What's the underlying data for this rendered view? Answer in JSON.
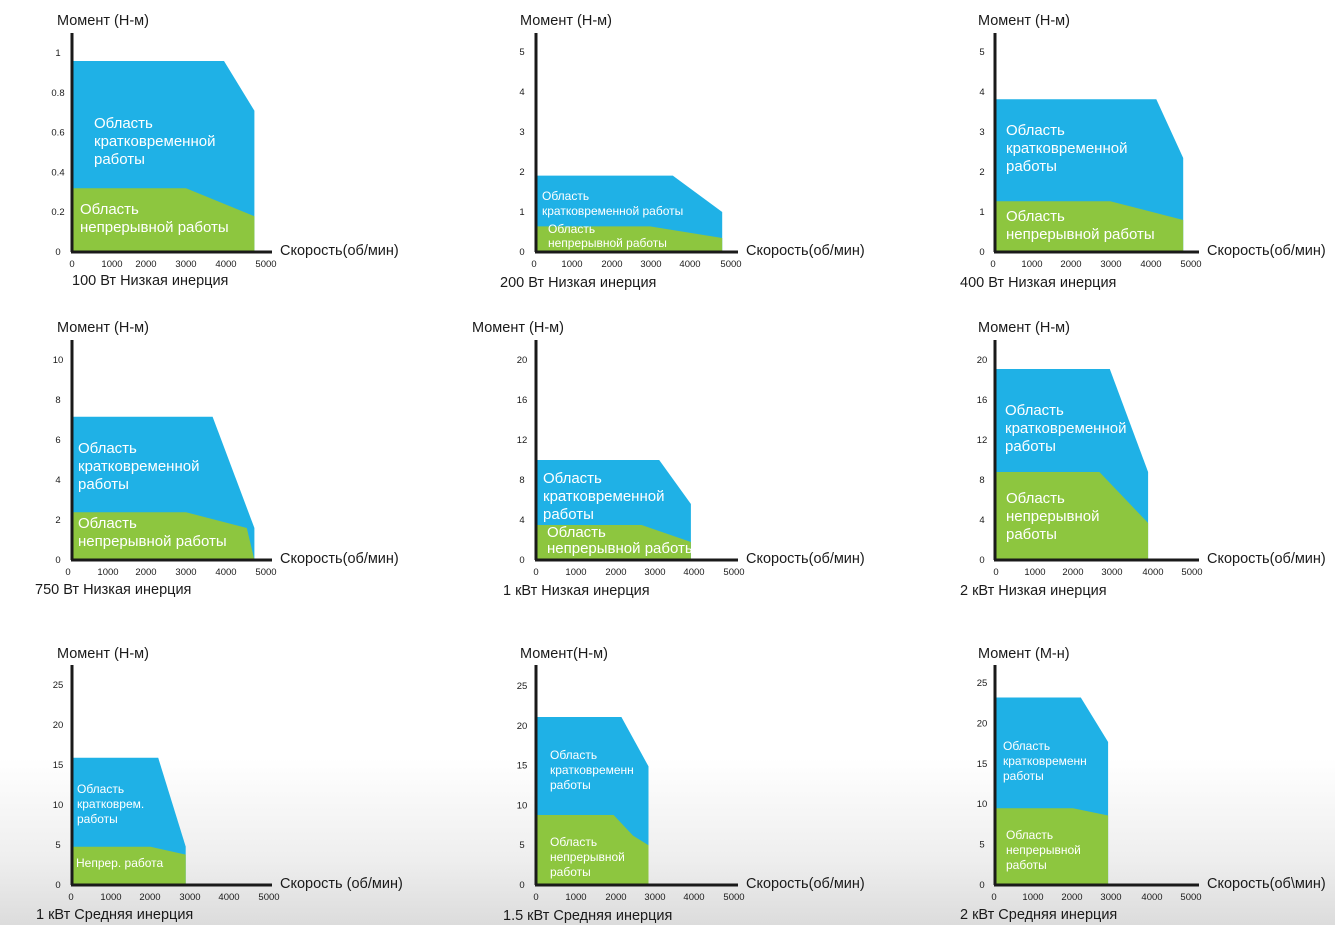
{
  "chart_data": [
    {
      "type": "area",
      "caption": "100 Вт Низкая инерция",
      "ylabel": "Момент (Н-м)",
      "xlabel": "Скорость(об/мин)",
      "xticks": [
        0,
        1000,
        2000,
        3000,
        4000,
        5000
      ],
      "yticks": [
        "0",
        "0.2",
        "0.4",
        "0.6",
        "0.8",
        "1"
      ],
      "xlim": [
        0,
        5000
      ],
      "ylim": [
        0,
        1
      ],
      "series": [
        {
          "name": "Область кратковременной работы",
          "label_lines": [
            "Область",
            "кратковременной",
            "работы"
          ],
          "color": "#1fb1e6",
          "points": [
            [
              0,
              0.96
            ],
            [
              4000,
              0.96
            ],
            [
              4800,
              0.71
            ],
            [
              4800,
              0
            ]
          ]
        },
        {
          "name": "Область непрерывной работы",
          "label_lines": [
            "Область",
            "непрерывной работы"
          ],
          "color": "#8dc63f",
          "points": [
            [
              0,
              0.32
            ],
            [
              3000,
              0.32
            ],
            [
              4800,
              0.18
            ],
            [
              4800,
              0
            ]
          ]
        }
      ]
    },
    {
      "type": "area",
      "caption": "200 Вт Низкая инерция",
      "ylabel": "Момент (Н-м)",
      "xlabel": "Скорость(об/мин)",
      "xticks": [
        0,
        1000,
        2000,
        3000,
        4000,
        5000
      ],
      "yticks": [
        "0",
        "1",
        "2",
        "3",
        "4",
        "5"
      ],
      "xlim": [
        0,
        5000
      ],
      "ylim": [
        0,
        5
      ],
      "series": [
        {
          "name": "Область кратковременной работы",
          "label_lines": [
            "Область",
            "кратковременной работы"
          ],
          "color": "#1fb1e6",
          "points": [
            [
              0,
              1.91
            ],
            [
              3600,
              1.91
            ],
            [
              4900,
              1.0
            ],
            [
              4900,
              0
            ]
          ]
        },
        {
          "name": "Область непрерывной работы",
          "label_lines": [
            "Область",
            "непрерывной работы"
          ],
          "color": "#8dc63f",
          "points": [
            [
              0,
              0.64
            ],
            [
              3000,
              0.64
            ],
            [
              4900,
              0.35
            ],
            [
              4900,
              0
            ]
          ]
        }
      ]
    },
    {
      "type": "area",
      "caption": "400 Вт Низкая инерция",
      "ylabel": "Момент (Н-м)",
      "xlabel": "Скорость(об/мин)",
      "xticks": [
        0,
        1000,
        2000,
        3000,
        4000,
        5000
      ],
      "yticks": [
        "0",
        "1",
        "2",
        "3",
        "4",
        "5"
      ],
      "xlim": [
        0,
        5000
      ],
      "ylim": [
        0,
        5
      ],
      "series": [
        {
          "name": "Область кратковременной работы",
          "label_lines": [
            "Область",
            "кратковременной",
            "работы"
          ],
          "color": "#1fb1e6",
          "points": [
            [
              0,
              3.82
            ],
            [
              4200,
              3.82
            ],
            [
              4900,
              2.35
            ],
            [
              4900,
              0
            ]
          ]
        },
        {
          "name": "Область непрерывной работы",
          "label_lines": [
            "Область",
            "непрерывной работы"
          ],
          "color": "#8dc63f",
          "points": [
            [
              0,
              1.27
            ],
            [
              3000,
              1.27
            ],
            [
              4900,
              0.8
            ],
            [
              4900,
              0
            ]
          ]
        }
      ]
    },
    {
      "type": "area",
      "caption": "750 Вт Низкая инерция",
      "ylabel": "Момент (Н-м)",
      "xlabel": "Скорость(об/мин)",
      "xticks": [
        0,
        1000,
        2000,
        3000,
        4000,
        5000
      ],
      "yticks": [
        "0",
        "2",
        "4",
        "6",
        "8",
        "10"
      ],
      "xlim": [
        0,
        5000
      ],
      "ylim": [
        0,
        10
      ],
      "series": [
        {
          "name": "Область кратковременной работы",
          "label_lines": [
            "Область",
            "кратковременной",
            "работы"
          ],
          "color": "#1fb1e6",
          "points": [
            [
              0,
              7.16
            ],
            [
              3700,
              7.16
            ],
            [
              4800,
              1.6
            ],
            [
              4800,
              0
            ]
          ]
        },
        {
          "name": "Область непрерывной работы",
          "label_lines": [
            "Область",
            "непрерывной работы"
          ],
          "color": "#8dc63f",
          "points": [
            [
              0,
              2.39
            ],
            [
              3000,
              2.39
            ],
            [
              4600,
              1.6
            ],
            [
              4800,
              0
            ]
          ]
        }
      ]
    },
    {
      "type": "area",
      "caption": "1 кВт Низкая инерция",
      "ylabel": "Момент (Н-м)",
      "xlabel": "Скорость(об/мин)",
      "xticks": [
        0,
        1000,
        2000,
        3000,
        4000,
        5000
      ],
      "yticks": [
        "0",
        "4",
        "8",
        "12",
        "16",
        "20"
      ],
      "xlim": [
        0,
        5000
      ],
      "ylim": [
        0,
        20
      ],
      "series": [
        {
          "name": "Область кратковременной работы",
          "label_lines": [
            "Область",
            "кратковременной",
            " работы"
          ],
          "color": "#1fb1e6",
          "points": [
            [
              0,
              10.0
            ],
            [
              3500,
              10.0
            ],
            [
              4400,
              5.6
            ],
            [
              4400,
              0
            ]
          ]
        },
        {
          "name": "Область непрерывной работы",
          "label_lines": [
            "Область",
            "непрерывной работы"
          ],
          "color": "#8dc63f",
          "points": [
            [
              0,
              3.5
            ],
            [
              3000,
              3.5
            ],
            [
              4400,
              1.8
            ],
            [
              4400,
              0
            ]
          ]
        }
      ]
    },
    {
      "type": "area",
      "caption": "2 кВт Низкая инерция",
      "ylabel": "Момент (Н-м)",
      "xlabel": "Скорость(об/мин)",
      "xticks": [
        0,
        1000,
        2000,
        3000,
        4000,
        5000
      ],
      "yticks": [
        "0",
        "4",
        "8",
        "12",
        "16",
        "20"
      ],
      "xlim": [
        0,
        5000
      ],
      "ylim": [
        0,
        20
      ],
      "series": [
        {
          "name": "Область кратковременной работы",
          "label_lines": [
            "Область",
            "кратковременной",
            "работы"
          ],
          "color": "#1fb1e6",
          "points": [
            [
              0,
              19.1
            ],
            [
              3300,
              19.1
            ],
            [
              4400,
              8.8
            ],
            [
              4400,
              0
            ]
          ]
        },
        {
          "name": "Область непрерывной работы",
          "label_lines": [
            "Область",
            "непрерывной",
            "работы"
          ],
          "color": "#8dc63f",
          "points": [
            [
              0,
              8.8
            ],
            [
              3000,
              8.8
            ],
            [
              4400,
              3.7
            ],
            [
              4400,
              0
            ]
          ]
        }
      ]
    },
    {
      "type": "area",
      "caption": "1 кВт Средняя инерция",
      "ylabel": "Момент (Н-м)",
      "xlabel": "Скорость (об/мин)",
      "xticks": [
        0,
        1000,
        2000,
        3000,
        4000,
        5000
      ],
      "yticks": [
        "0",
        "5",
        "10",
        "15",
        "20",
        "25"
      ],
      "xlim": [
        0,
        5000
      ],
      "ylim": [
        0,
        25
      ],
      "series": [
        {
          "name": "Область кратковрем. работы",
          "label_lines": [
            "Область",
            "кратковрем.",
            "работы"
          ],
          "color": "#1fb1e6",
          "points": [
            [
              0,
              15.9
            ],
            [
              2200,
              15.9
            ],
            [
              2900,
              4.8
            ],
            [
              2900,
              0
            ]
          ]
        },
        {
          "name": "Непрер. работа",
          "label_lines": [
            "Непрер. работа"
          ],
          "color": "#8dc63f",
          "points": [
            [
              0,
              4.77
            ],
            [
              2000,
              4.77
            ],
            [
              2900,
              3.8
            ],
            [
              2900,
              0
            ]
          ]
        }
      ]
    },
    {
      "type": "area",
      "caption": "1.5 кВт Средняя инерция",
      "ylabel": "Момент(Н-м)",
      "xlabel": "Скорость(об/мин)",
      "xticks": [
        0,
        1000,
        2000,
        3000,
        4000,
        5000
      ],
      "yticks": [
        "0",
        "5",
        "10",
        "15",
        "20",
        "25"
      ],
      "xlim": [
        0,
        5000
      ],
      "ylim": [
        0,
        25
      ],
      "series": [
        {
          "name": "Область кратковременной работы",
          "label_lines": [
            "Область",
            "кратковременн",
            "работы"
          ],
          "color": "#1fb1e6",
          "points": [
            [
              0,
              21.1
            ],
            [
              2200,
              21.1
            ],
            [
              2900,
              14.9
            ],
            [
              2900,
              0
            ]
          ]
        },
        {
          "name": "Область непрерывной работы",
          "label_lines": [
            "Область",
            "непрерывной",
            "работы"
          ],
          "color": "#8dc63f",
          "points": [
            [
              0,
              8.8
            ],
            [
              2000,
              8.8
            ],
            [
              2500,
              6.2
            ],
            [
              2900,
              5.0
            ],
            [
              2900,
              0
            ]
          ]
        }
      ]
    },
    {
      "type": "area",
      "caption": "2 кВт Средняя инерция",
      "ylabel": "Момент (М-н)",
      "xlabel": "Скорость(об\\мин)",
      "xticks": [
        0,
        1000,
        2000,
        3000,
        4000,
        5000
      ],
      "yticks": [
        "0",
        "5",
        "10",
        "15",
        "20",
        "25"
      ],
      "xlim": [
        0,
        5000
      ],
      "ylim": [
        0,
        25
      ],
      "series": [
        {
          "name": "Область кратковременной работы",
          "label_lines": [
            "Область",
            "кратковременн",
            "работы"
          ],
          "color": "#1fb1e6",
          "points": [
            [
              0,
              23.2
            ],
            [
              2200,
              23.2
            ],
            [
              2900,
              17.7
            ],
            [
              2900,
              0
            ]
          ]
        },
        {
          "name": "Область непрерывной работы",
          "label_lines": [
            "Область",
            "непрерывной",
            "работы"
          ],
          "color": "#8dc63f",
          "points": [
            [
              0,
              9.5
            ],
            [
              2000,
              9.5
            ],
            [
              2900,
              8.6
            ],
            [
              2900,
              0
            ]
          ]
        }
      ]
    }
  ]
}
